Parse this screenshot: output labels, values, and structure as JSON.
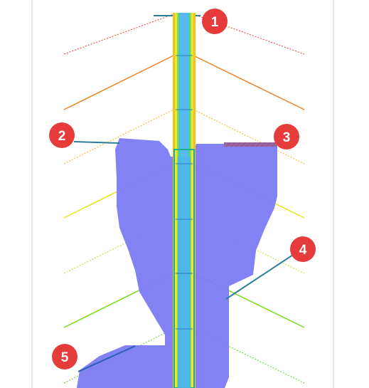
{
  "colors": {
    "background": "#ffffff",
    "frame_border": "#cfcfcf",
    "region_fill": "#7b7bf4",
    "callout_fill": "#e63b3b",
    "callout_text": "#ffffff",
    "leader_line": "#2b7f9a",
    "contour_red": "#ee3b2a",
    "contour_orange": "#f0821e",
    "contour_amber": "#f5b21c",
    "contour_yellow": "#e8e21a",
    "contour_lime": "#b6e61e",
    "contour_green": "#7ad81e",
    "contour_green_light": "#5ccf2a",
    "shaft_outer": "#f3c21a",
    "shaft_mid": "#8ee02a",
    "shaft_inner": "#3fc7d8",
    "shaft_core": "#2f8fe0"
  },
  "callouts": [
    {
      "label": "1"
    },
    {
      "label": "2"
    },
    {
      "label": "3"
    },
    {
      "label": "4"
    },
    {
      "label": "5"
    }
  ]
}
